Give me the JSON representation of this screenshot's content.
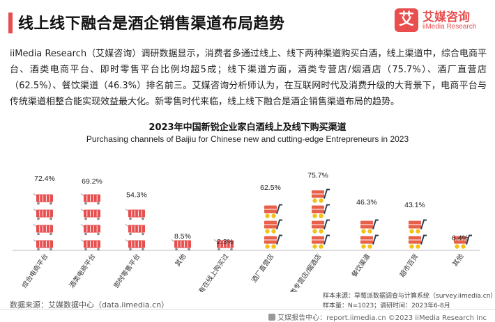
{
  "header": {
    "title": "线上线下融合是酒企销售渠道布局趋势",
    "logo_mark": "艾",
    "logo_cn": "艾媒咨询",
    "logo_en": "iiMedia Research"
  },
  "paragraph": "iiMedia Research（艾媒咨询）调研数据显示，消费者多通过线上、线下两种渠道购买白酒，线上渠道中，综合电商平台、酒类电商平台、即时零售平台比例均超5成；线下渠道方面，酒类专营店/烟酒店（75.7%）、酒厂直营店（62.5%）、餐饮渠道（46.3%）排名前三。艾媒咨询分析师认为，在互联网时代及消费升级的大背景下，电商平台与传统渠道相整合能实现效益最大化。新零售时代来临，线上线下融合是酒企销售渠道布局的趋势。",
  "chart_data": {
    "type": "bar",
    "title": "2023年中国新锐企业家白酒线上及线下购买渠道",
    "subtitle": "Purchasing channels of Baijiu for Chinese new and cutting-edge Entrepreneurs in 2023",
    "ylim": [
      0,
      100
    ],
    "colors": {
      "online": "#e84e4e",
      "offline_basket": "#e8604a",
      "offline_wheel": "#f2c21a",
      "offline_handle": "#2f3e52"
    },
    "groups": [
      {
        "name": "online",
        "categories": [
          "综合电商平台",
          "酒类电商平台",
          "即时零售平台",
          "其他",
          "没有在线上购买过"
        ],
        "values": [
          72.4,
          69.2,
          54.3,
          8.5,
          2.3
        ],
        "labels": [
          "72.4%",
          "69.2%",
          "54.3%",
          "8.5%",
          "2.3%"
        ]
      },
      {
        "name": "offline",
        "categories": [
          "酒厂直营店",
          "酒类专营店/烟酒店",
          "餐饮渠道",
          "超市百货",
          "其他"
        ],
        "values": [
          62.5,
          75.7,
          46.3,
          43.1,
          6.4
        ],
        "labels": [
          "62.5%",
          "75.7%",
          "46.3%",
          "43.1%",
          "6.4%"
        ]
      }
    ]
  },
  "footer": {
    "source": "数据来源：艾媒数据中心（data.iimedia.cn）",
    "sample_source": "样本来源：草莓派数据调查与计算系统（survey.iimedia.cn）",
    "sample_size": "样本量：N=1023；调研时间：2023年6-8月",
    "bottom": "艾媒报告中心：report.iimedia.cn   ©2023   iiMedia Research  Inc"
  }
}
